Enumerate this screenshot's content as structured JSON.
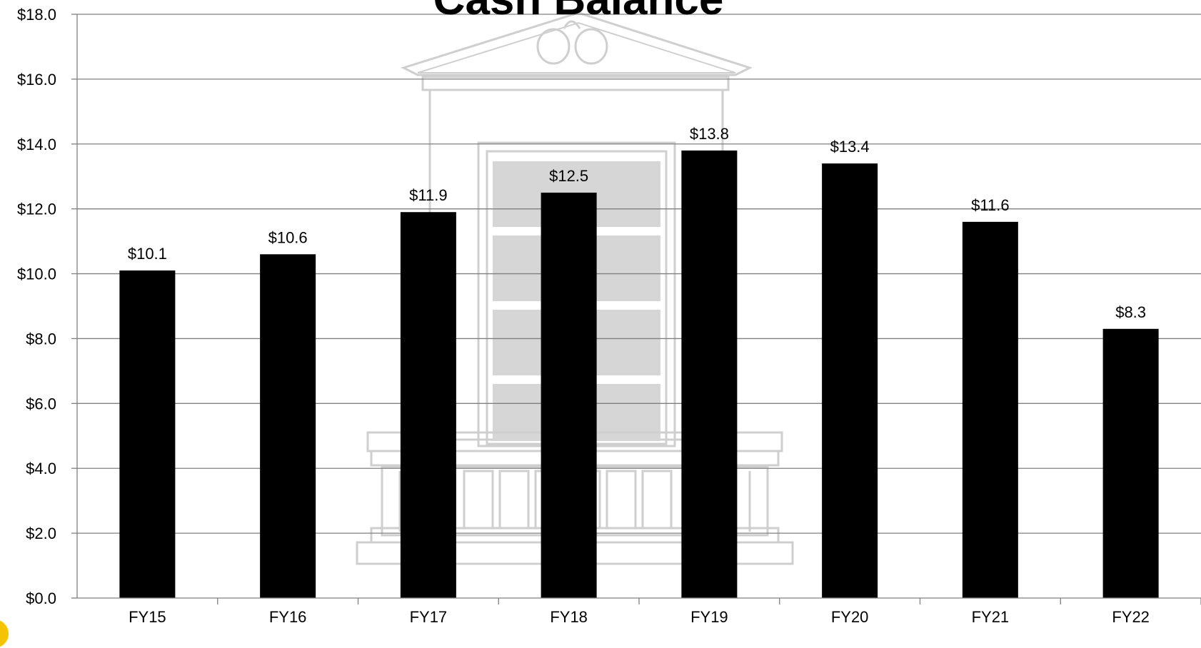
{
  "chart_data": {
    "type": "bar",
    "title": "Cash Balance",
    "categories": [
      "FY15",
      "FY16",
      "FY17",
      "FY18",
      "FY19",
      "FY20",
      "FY21",
      "FY22"
    ],
    "values": [
      10.1,
      10.6,
      11.9,
      12.5,
      13.8,
      13.4,
      11.6,
      8.3
    ],
    "value_labels": [
      "$10.1",
      "$10.6",
      "$11.9",
      "$12.5",
      "$13.8",
      "$13.4",
      "$11.6",
      "$8.3"
    ],
    "y_ticks": [
      "$0.0",
      "$2.0",
      "$4.0",
      "$6.0",
      "$8.0",
      "$10.0",
      "$12.0",
      "$14.0",
      "$16.0",
      "$18.0"
    ],
    "ylim": [
      0,
      18
    ],
    "ystep": 2,
    "grid": true,
    "bar_color": "#000000",
    "grid_color": "#808080",
    "watermark_color": "#d0d0d0",
    "watermark_icon": "capitol-building-icon"
  }
}
